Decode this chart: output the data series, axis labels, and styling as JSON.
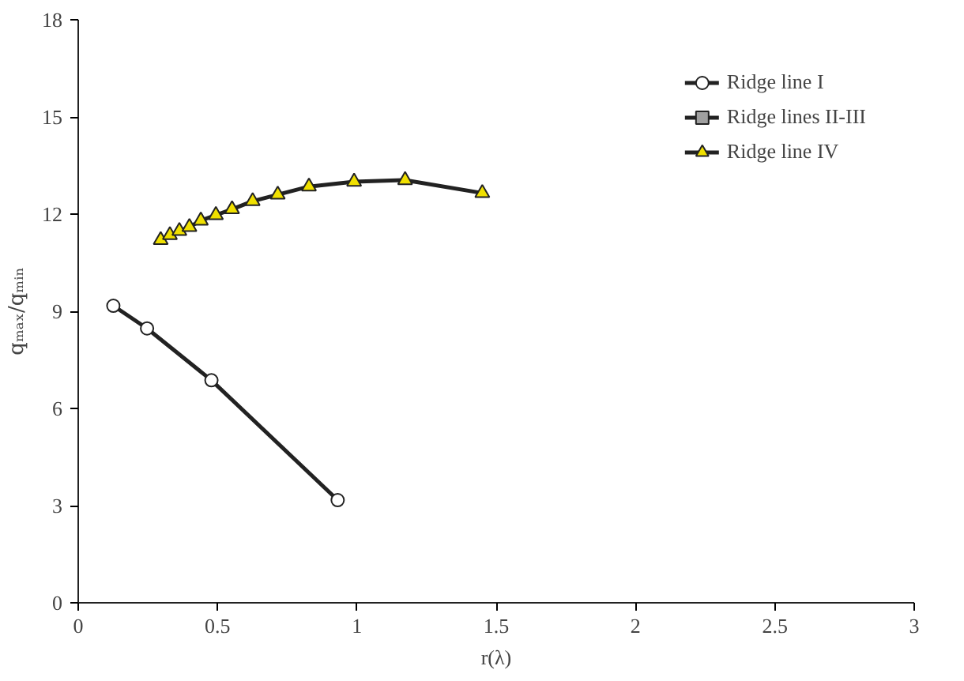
{
  "chart_data": {
    "type": "line",
    "xlabel": "r(λ)",
    "ylabel": "qₘₐₓ/qₘᵢₙ",
    "xlim": [
      0,
      3
    ],
    "xticks": [
      0,
      0.5,
      1,
      1.5,
      2,
      2.5,
      3
    ],
    "ylim": [
      0,
      18
    ],
    "yticks": [
      0,
      3,
      6,
      9,
      12,
      15,
      18
    ],
    "grid": false,
    "legend": "top right",
    "series": [
      {
        "name": "Ridge line I",
        "color": "#ffffff",
        "marker": "circle",
        "x": [
          0.126,
          0.247,
          0.478,
          0.931
        ],
        "values": [
          9.17,
          8.47,
          6.87,
          3.17
        ]
      },
      {
        "name": "Ridge lines II-III",
        "color": "#a0a0a0",
        "marker": "square"
      },
      {
        "name": "Ridge line IV",
        "color": "#f0e000",
        "marker": "triangle",
        "x": [
          0.296,
          0.329,
          0.363,
          0.399,
          0.44,
          0.494,
          0.552,
          0.626,
          0.716,
          0.828,
          0.99,
          1.173,
          1.45
        ],
        "values": [
          11.2,
          11.35,
          11.48,
          11.6,
          11.8,
          11.97,
          12.15,
          12.4,
          12.6,
          12.85,
          13.0,
          13.05,
          12.65
        ]
      }
    ]
  }
}
